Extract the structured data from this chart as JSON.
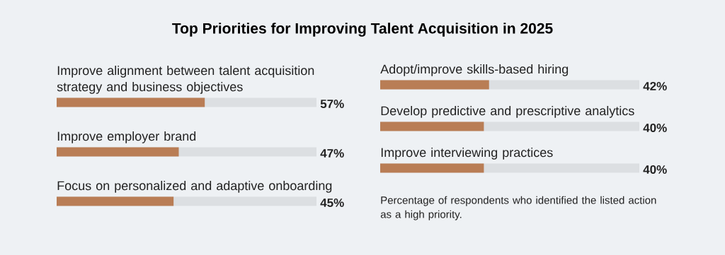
{
  "chart_data": [
    {
      "type": "bar",
      "orientation": "horizontal",
      "title": "Top Priorities for Improving Talent Acquisition in 2025",
      "categories": [
        "Improve alignment between talent acquisition strategy and business objectives",
        "Improve employer brand",
        "Focus on personalized and adaptive onboarding"
      ],
      "values": [
        57,
        47,
        45
      ],
      "value_labels": [
        "57%",
        "47%",
        "45%"
      ],
      "color": "#b97d55",
      "xlim": [
        0,
        100
      ]
    },
    {
      "type": "bar",
      "orientation": "horizontal",
      "categories": [
        "Adopt/improve skills-based hiring",
        "Develop predictive and prescriptive analytics",
        "Improve interviewing practices"
      ],
      "values": [
        42,
        40,
        40
      ],
      "value_labels": [
        "42%",
        "40%",
        "40%"
      ],
      "color": "#b97d55",
      "xlim": [
        0,
        100
      ],
      "annotations": [
        "Percentage of respondents who identified the listed action as a high priority."
      ]
    }
  ]
}
